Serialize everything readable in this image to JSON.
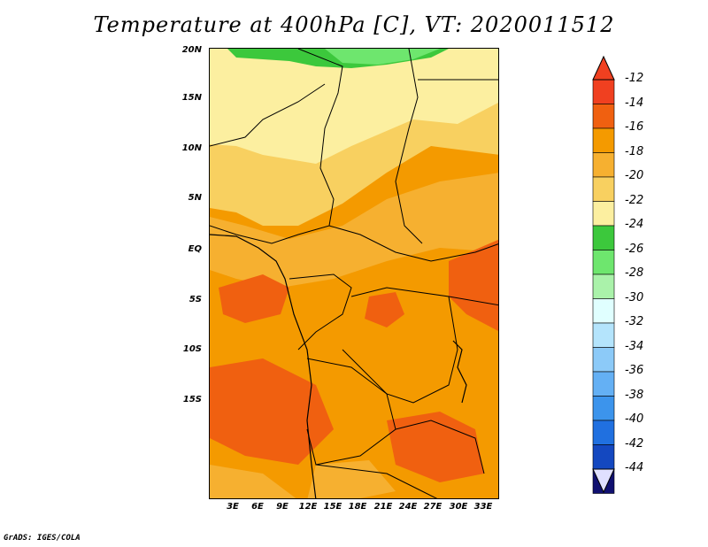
{
  "title": "Temperature at 400hPa [C], VT: 2020011512",
  "footer": "GrADS: IGES/COLA",
  "map": {
    "lat_labels": [
      "20N",
      "15N",
      "10N",
      "5N",
      "EQ",
      "5S",
      "10S",
      "15S"
    ],
    "lon_labels": [
      "3E",
      "6E",
      "9E",
      "12E",
      "15E",
      "18E",
      "21E",
      "24E",
      "27E",
      "30E",
      "33E"
    ]
  },
  "colorbar": {
    "labels": [
      "-12",
      "-14",
      "-16",
      "-18",
      "-20",
      "-22",
      "-24",
      "-26",
      "-28",
      "-30",
      "-32",
      "-34",
      "-36",
      "-38",
      "-40",
      "-42",
      "-44"
    ],
    "colors": [
      "#f04020",
      "#f06010",
      "#f49a00",
      "#f6b030",
      "#f8d060",
      "#fcefa0",
      "#3cc83c",
      "#6ee66e",
      "#aaf2aa",
      "#e0ffff",
      "#b4e4fc",
      "#8ccaf8",
      "#64b0f4",
      "#3c94ec",
      "#2070e0",
      "#1448c0",
      "#101070"
    ],
    "top_arrow_color": "#f04020",
    "bottom_arrow_color": "#e0e0ff"
  }
}
